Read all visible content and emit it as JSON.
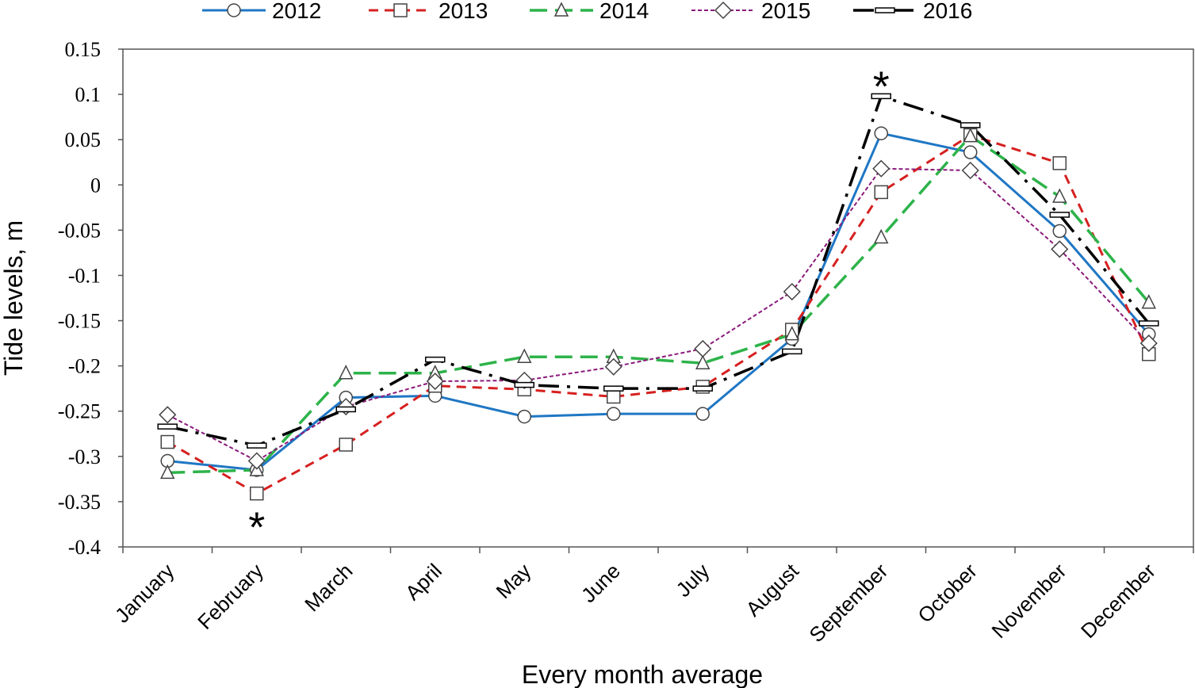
{
  "chart_data": {
    "type": "line",
    "categories": [
      "January",
      "February",
      "March",
      "April",
      "May",
      "June",
      "July",
      "August",
      "September",
      "October",
      "November",
      "December"
    ],
    "ylabel": "Tide levels, m",
    "xlabel": "Every month average",
    "ylim": [
      -0.4,
      0.15
    ],
    "ytick_step": 0.05,
    "yticks": [
      "0.15",
      "0.1",
      "0.05",
      "0",
      "-0.05",
      "-0.1",
      "-0.15",
      "-0.2",
      "-0.25",
      "-0.3",
      "-0.35",
      "-0.4"
    ],
    "grid": false,
    "legend_position": "top",
    "series": [
      {
        "name": "2012",
        "color": "#1f77c4",
        "marker": "circle",
        "values": [
          -0.305,
          -0.315,
          -0.235,
          -0.233,
          -0.256,
          -0.253,
          -0.253,
          -0.17,
          0.057,
          0.036,
          -0.051,
          -0.165
        ]
      },
      {
        "name": "2013",
        "color": "#d62020",
        "marker": "square",
        "values": [
          -0.284,
          -0.341,
          -0.287,
          -0.222,
          -0.226,
          -0.234,
          -0.223,
          -0.16,
          -0.008,
          0.055,
          0.024,
          -0.187
        ]
      },
      {
        "name": "2014",
        "color": "#2db34a",
        "marker": "triangle",
        "values": [
          -0.318,
          -0.315,
          -0.208,
          -0.208,
          -0.19,
          -0.19,
          -0.197,
          -0.165,
          -0.058,
          0.054,
          -0.013,
          -0.13
        ]
      },
      {
        "name": "2015",
        "color": "#8b1a7a",
        "marker": "diamond",
        "values": [
          -0.254,
          -0.305,
          -0.245,
          -0.217,
          -0.216,
          -0.201,
          -0.181,
          -0.118,
          0.018,
          0.016,
          -0.071,
          -0.175
        ]
      },
      {
        "name": "2016",
        "color": "#000000",
        "marker": "dash",
        "values": [
          -0.267,
          -0.288,
          -0.248,
          -0.193,
          -0.221,
          -0.225,
          -0.225,
          -0.184,
          0.098,
          0.066,
          -0.033,
          -0.153
        ]
      }
    ],
    "annotations": [
      {
        "text": "*",
        "category": "February",
        "y": -0.375
      },
      {
        "text": "*",
        "category": "September",
        "y": 0.112
      }
    ]
  }
}
